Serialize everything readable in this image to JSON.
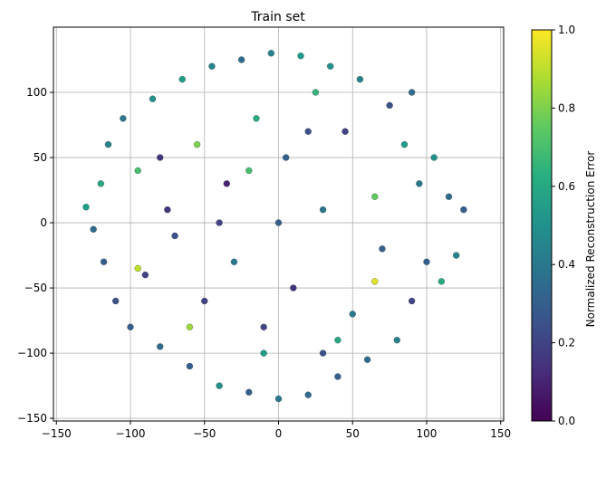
{
  "chart_data": {
    "type": "scatter",
    "title": "Train set",
    "xlabel": "",
    "ylabel": "",
    "xlim": [
      -152,
      152
    ],
    "ylim": [
      -152,
      150
    ],
    "xticks": [
      -150,
      -100,
      -50,
      0,
      50,
      100,
      150
    ],
    "yticks": [
      -150,
      -100,
      -50,
      0,
      50,
      100
    ],
    "xtick_labels": [
      "−150",
      "−100",
      "−50",
      "0",
      "50",
      "100",
      "150"
    ],
    "ytick_labels": [
      "−150",
      "−100",
      "−50",
      "0",
      "50",
      "100"
    ],
    "grid": true,
    "colormap": "viridis",
    "colorbar": {
      "label": "Normalized Reconstruction Error",
      "range": [
        0,
        1
      ],
      "ticks": [
        0.0,
        0.2,
        0.4,
        0.6,
        0.8,
        1.0
      ],
      "tick_labels": [
        "0.0",
        "0.2",
        "0.4",
        "0.6",
        "0.8",
        "1.0"
      ]
    },
    "points": [
      [
        -130,
        12,
        0.55
      ],
      [
        -125,
        -5,
        0.35
      ],
      [
        -120,
        30,
        0.6
      ],
      [
        -118,
        -30,
        0.3
      ],
      [
        -115,
        60,
        0.45
      ],
      [
        -110,
        -60,
        0.25
      ],
      [
        -105,
        80,
        0.4
      ],
      [
        -100,
        -80,
        0.3
      ],
      [
        -95,
        40,
        0.7
      ],
      [
        -90,
        -40,
        0.2
      ],
      [
        -85,
        95,
        0.5
      ],
      [
        -80,
        -95,
        0.35
      ],
      [
        -75,
        10,
        0.15
      ],
      [
        -70,
        -10,
        0.25
      ],
      [
        -65,
        110,
        0.55
      ],
      [
        -60,
        -110,
        0.3
      ],
      [
        -55,
        60,
        0.8
      ],
      [
        -50,
        -60,
        0.2
      ],
      [
        -45,
        120,
        0.45
      ],
      [
        -40,
        -125,
        0.5
      ],
      [
        -35,
        30,
        0.1
      ],
      [
        -30,
        -30,
        0.4
      ],
      [
        -25,
        125,
        0.35
      ],
      [
        -20,
        -130,
        0.3
      ],
      [
        -15,
        80,
        0.6
      ],
      [
        -10,
        -80,
        0.2
      ],
      [
        -5,
        130,
        0.45
      ],
      [
        0,
        -135,
        0.4
      ],
      [
        5,
        50,
        0.3
      ],
      [
        10,
        -50,
        0.15
      ],
      [
        15,
        128,
        0.55
      ],
      [
        20,
        -132,
        0.35
      ],
      [
        25,
        100,
        0.65
      ],
      [
        30,
        -100,
        0.25
      ],
      [
        35,
        120,
        0.5
      ],
      [
        40,
        -118,
        0.3
      ],
      [
        45,
        70,
        0.2
      ],
      [
        50,
        -70,
        0.4
      ],
      [
        55,
        110,
        0.45
      ],
      [
        60,
        -105,
        0.35
      ],
      [
        65,
        20,
        0.75
      ],
      [
        70,
        -20,
        0.3
      ],
      [
        75,
        90,
        0.25
      ],
      [
        80,
        -90,
        0.45
      ],
      [
        85,
        60,
        0.55
      ],
      [
        90,
        -60,
        0.2
      ],
      [
        95,
        30,
        0.4
      ],
      [
        100,
        -30,
        0.3
      ],
      [
        105,
        50,
        0.5
      ],
      [
        110,
        -45,
        0.6
      ],
      [
        115,
        20,
        0.35
      ],
      [
        120,
        -25,
        0.45
      ],
      [
        125,
        10,
        0.3
      ],
      [
        -40,
        0,
        0.2
      ],
      [
        0,
        0,
        0.3
      ],
      [
        30,
        10,
        0.4
      ],
      [
        -60,
        -80,
        0.85
      ],
      [
        -95,
        -35,
        0.9
      ],
      [
        65,
        -45,
        0.95
      ],
      [
        -20,
        40,
        0.7
      ],
      [
        40,
        -90,
        0.6
      ],
      [
        -80,
        50,
        0.15
      ],
      [
        20,
        70,
        0.25
      ],
      [
        -10,
        -100,
        0.55
      ],
      [
        90,
        100,
        0.35
      ]
    ]
  }
}
